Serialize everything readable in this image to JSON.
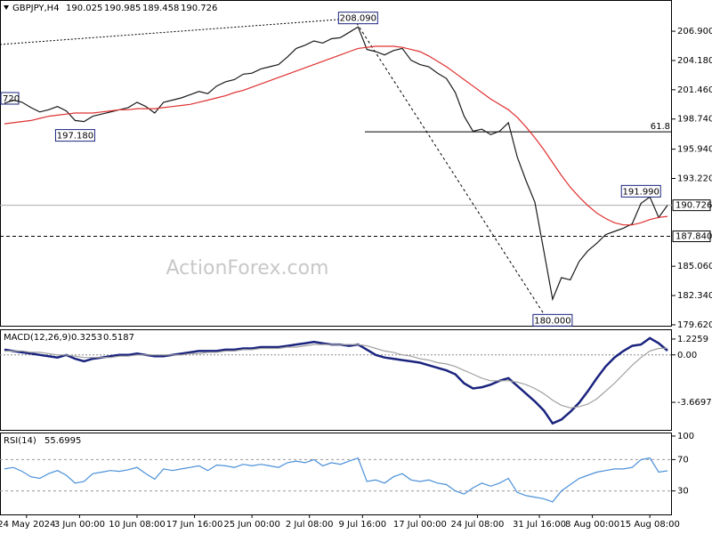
{
  "chart_data": [
    {
      "type": "line",
      "title": "GBPJPY,H4",
      "header_values": [
        190.025,
        190.985,
        189.458,
        190.726
      ],
      "watermark": "ActionForex.com",
      "xlim": [
        0,
        76
      ],
      "ylim": [
        179.45,
        209.8
      ],
      "yticks": [
        {
          "value": 206.9,
          "label": "206.900"
        },
        {
          "value": 204.18,
          "label": "204.180"
        },
        {
          "value": 201.46,
          "label": "201.460"
        },
        {
          "value": 198.74,
          "label": "198.740"
        },
        {
          "value": 195.94,
          "label": "195.940"
        },
        {
          "value": 193.22,
          "label": "193.220"
        },
        {
          "value": 185.06,
          "label": "185.060"
        },
        {
          "value": 182.34,
          "label": "182.340"
        },
        {
          "value": 179.62,
          "label": "179.620"
        }
      ],
      "series": [
        {
          "name": "GBPJPY",
          "color": "#1a1a1a",
          "values": [
            200.2,
            200.5,
            200.3,
            199.8,
            199.4,
            199.6,
            199.9,
            199.5,
            198.6,
            198.5,
            199.0,
            199.2,
            199.4,
            199.6,
            199.8,
            200.3,
            199.9,
            199.3,
            200.3,
            200.5,
            200.7,
            201.0,
            201.3,
            201.1,
            201.8,
            202.2,
            202.4,
            202.9,
            203.0,
            203.4,
            203.6,
            203.8,
            204.5,
            205.3,
            205.6,
            206.0,
            205.8,
            206.2,
            206.3,
            206.8,
            207.3,
            205.2,
            205.0,
            204.7,
            205.1,
            205.3,
            204.2,
            203.8,
            203.6,
            203.0,
            202.5,
            201.2,
            199.0,
            197.6,
            197.8,
            197.3,
            197.6,
            198.4,
            195.2,
            193.0,
            191.0,
            186.5,
            182.0,
            184.0,
            183.8,
            185.5,
            186.5,
            187.2,
            188.0,
            188.3,
            188.6,
            189.0,
            190.9,
            191.5,
            189.6,
            190.726
          ]
        },
        {
          "name": "MA",
          "color": "#e03030",
          "values": [
            198.3,
            198.4,
            198.5,
            198.6,
            198.8,
            199.0,
            199.1,
            199.2,
            199.3,
            199.3,
            199.3,
            199.4,
            199.5,
            199.6,
            199.6,
            199.7,
            199.7,
            199.7,
            199.8,
            199.9,
            200.0,
            200.1,
            200.3,
            200.5,
            200.7,
            200.9,
            201.2,
            201.4,
            201.7,
            202.0,
            202.3,
            202.6,
            202.9,
            203.2,
            203.5,
            203.8,
            204.1,
            204.4,
            204.7,
            205.0,
            205.3,
            205.4,
            205.5,
            205.5,
            205.5,
            205.4,
            205.2,
            205.0,
            204.6,
            204.1,
            203.6,
            203.0,
            202.4,
            201.8,
            201.2,
            200.6,
            200.1,
            199.6,
            198.9,
            198.0,
            197.0,
            195.9,
            194.7,
            193.5,
            192.4,
            191.5,
            190.7,
            190.0,
            189.5,
            189.1,
            188.9,
            188.9,
            189.1,
            189.4,
            189.6,
            189.7
          ]
        }
      ],
      "annotations": [
        {
          "x": 40,
          "value": 208.09,
          "label": "208.090"
        },
        {
          "x": 8,
          "value": 197.18,
          "label": "197.180"
        },
        {
          "x": 62,
          "value": 180.0,
          "label": "180.000"
        },
        {
          "x": 72,
          "value": 191.99,
          "label": "191.990"
        }
      ],
      "cut_label": "720",
      "support_level": {
        "value": 187.84,
        "label": "187.840"
      },
      "current_price": 190.726,
      "fib_ratio": 61.8,
      "fib_price": 197.55
    },
    {
      "type": "line",
      "title": "MACD(12,26,9)",
      "header_values": [
        0.3253,
        0.5187
      ],
      "xlim": [
        0,
        76
      ],
      "ylim": [
        -5.8,
        1.98
      ],
      "yticks": [
        1.2259,
        {
          "value": 0,
          "label": "0.00"
        },
        -3.6697
      ],
      "series": [
        {
          "name": "MACD",
          "color": "#1a237e",
          "values": [
            0.4,
            0.3,
            0.2,
            0.1,
            0.0,
            -0.1,
            -0.2,
            0.0,
            -0.3,
            -0.5,
            -0.3,
            -0.2,
            -0.1,
            0.0,
            0.0,
            0.1,
            0.0,
            -0.1,
            -0.1,
            0.0,
            0.1,
            0.2,
            0.3,
            0.3,
            0.3,
            0.4,
            0.4,
            0.5,
            0.5,
            0.6,
            0.6,
            0.6,
            0.7,
            0.8,
            0.9,
            1.0,
            0.9,
            0.8,
            0.8,
            0.7,
            0.8,
            0.4,
            0.0,
            -0.2,
            -0.3,
            -0.4,
            -0.5,
            -0.6,
            -0.8,
            -1.0,
            -1.2,
            -1.5,
            -2.2,
            -2.6,
            -2.5,
            -2.3,
            -2.0,
            -1.8,
            -2.4,
            -3.0,
            -3.6,
            -4.3,
            -5.3,
            -5.0,
            -4.4,
            -3.7,
            -2.8,
            -1.8,
            -0.9,
            -0.2,
            0.3,
            0.7,
            0.8,
            1.3,
            0.9,
            0.3253
          ]
        },
        {
          "name": "Signal",
          "color": "#a0a0a0",
          "values": [
            0.3,
            0.3,
            0.3,
            0.2,
            0.2,
            0.1,
            0.0,
            0.0,
            -0.1,
            -0.2,
            -0.2,
            -0.2,
            -0.2,
            -0.1,
            -0.1,
            0.0,
            0.0,
            0.0,
            0.0,
            0.0,
            0.0,
            0.1,
            0.1,
            0.2,
            0.2,
            0.3,
            0.3,
            0.4,
            0.4,
            0.5,
            0.5,
            0.5,
            0.6,
            0.6,
            0.7,
            0.8,
            0.8,
            0.8,
            0.8,
            0.8,
            0.8,
            0.7,
            0.5,
            0.3,
            0.2,
            0.0,
            -0.1,
            -0.3,
            -0.4,
            -0.6,
            -0.7,
            -0.9,
            -1.2,
            -1.5,
            -1.8,
            -2.0,
            -2.0,
            -2.0,
            -2.1,
            -2.3,
            -2.6,
            -3.0,
            -3.5,
            -3.9,
            -4.1,
            -4.0,
            -3.8,
            -3.4,
            -2.8,
            -2.2,
            -1.5,
            -0.8,
            -0.2,
            0.3,
            0.5,
            0.5187
          ]
        }
      ]
    },
    {
      "type": "line",
      "title": "RSI(14)",
      "header_values": [
        55.6995
      ],
      "xlim": [
        0,
        76
      ],
      "ylim": [
        0,
        104.5
      ],
      "yticks": [
        100,
        70,
        30
      ],
      "xticks": [
        {
          "value": 3,
          "label": "24 May 2024"
        },
        {
          "value": 9,
          "label": "3 Jun 00:00"
        },
        {
          "value": 15.5,
          "label": "10 Jun 08:00"
        },
        {
          "value": 22,
          "label": "17 Jun 16:00"
        },
        {
          "value": 28.5,
          "label": "25 Jun 00:00"
        },
        {
          "value": 35,
          "label": "2 Jul 08:00"
        },
        {
          "value": 41,
          "label": "9 Jul 16:00"
        },
        {
          "value": 47.5,
          "label": "17 Jul 00:00"
        },
        {
          "value": 54,
          "label": "24 Jul 08:00"
        },
        {
          "value": 61,
          "label": "31 Jul 16:00"
        },
        {
          "value": 67,
          "label": "8 Aug 00:00"
        },
        {
          "value": 73.5,
          "label": "15 Aug 08:00"
        }
      ],
      "series": [
        {
          "name": "RSI",
          "color": "#4a90d9",
          "values": [
            58,
            60,
            55,
            48,
            46,
            52,
            56,
            50,
            40,
            42,
            52,
            54,
            56,
            55,
            57,
            60,
            52,
            45,
            58,
            56,
            58,
            60,
            62,
            56,
            63,
            62,
            60,
            64,
            62,
            64,
            62,
            60,
            66,
            68,
            66,
            70,
            62,
            66,
            64,
            68,
            72,
            42,
            44,
            40,
            48,
            52,
            44,
            42,
            44,
            40,
            38,
            30,
            26,
            34,
            40,
            36,
            40,
            46,
            28,
            24,
            22,
            20,
            16,
            30,
            38,
            46,
            50,
            54,
            56,
            58,
            58,
            60,
            70,
            72,
            54,
            55.6995
          ]
        }
      ]
    }
  ]
}
